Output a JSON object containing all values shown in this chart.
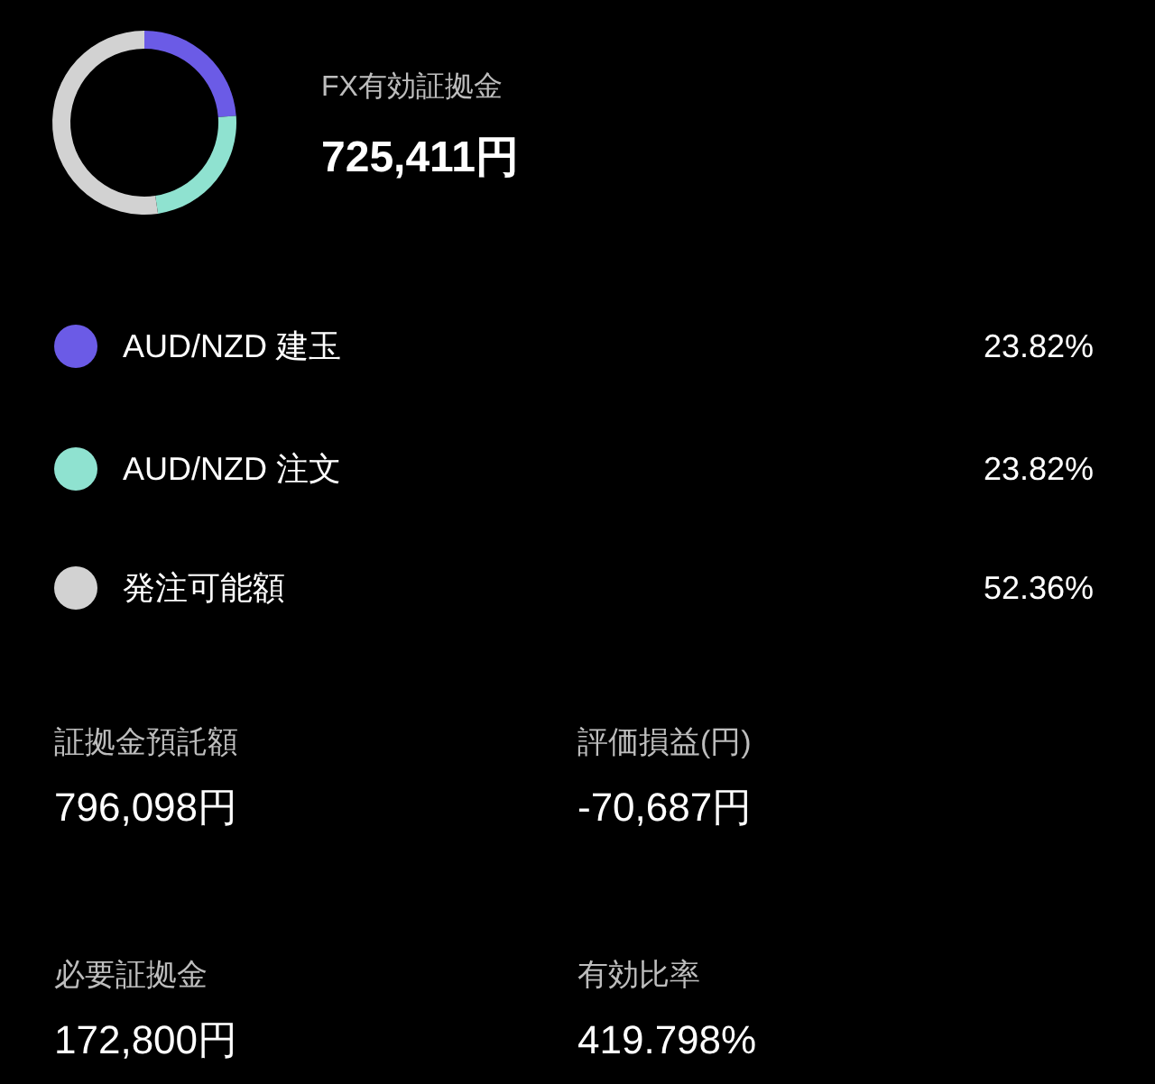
{
  "chart_data": {
    "type": "donut",
    "title": "FX有効証拠金",
    "subtitle": "725,411円",
    "categories": [
      "AUD/NZD 建玉",
      "AUD/NZD 注文",
      "発注可能額"
    ],
    "values": [
      23.82,
      23.82,
      52.36
    ],
    "colors": [
      "#6b5be6",
      "#8fe2d0",
      "#d2d2d2"
    ],
    "value_labels": [
      "23.82%",
      "23.82%",
      "52.36%"
    ],
    "legend": "bottom",
    "annotations": [
      "証拠金預託額",
      "796,098円",
      "評価損益(円)",
      "-70,687円",
      "必要証拠金",
      "172,800円",
      "有効比率",
      "419.798%"
    ]
  }
}
